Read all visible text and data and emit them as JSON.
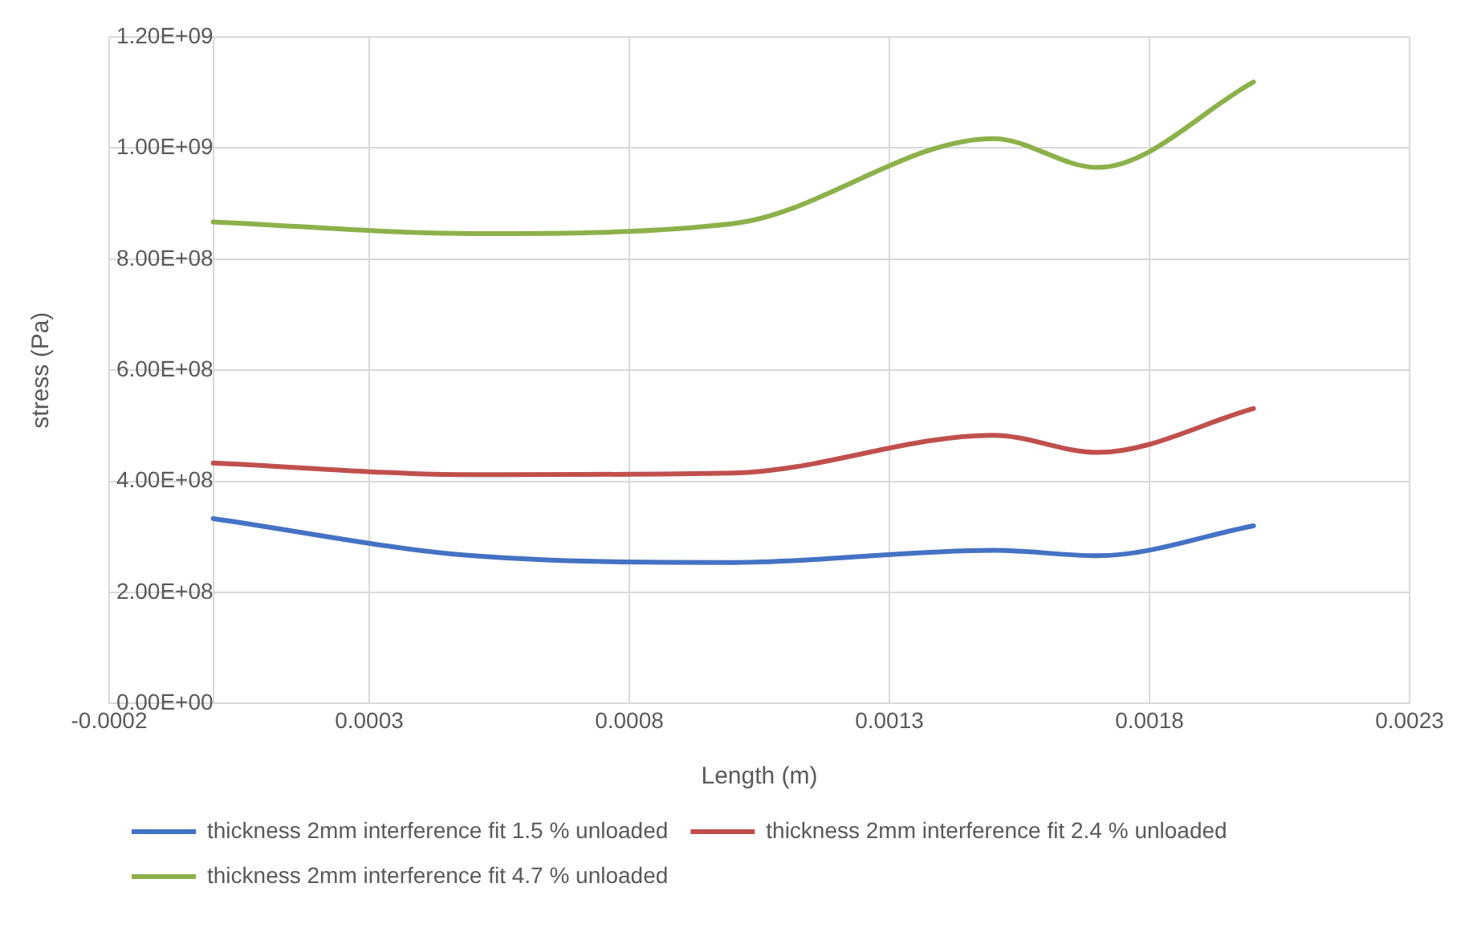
{
  "chart_data": {
    "type": "line",
    "xlabel": "Length (m)",
    "ylabel": "stress (Pa)",
    "xlim": [
      -0.0002,
      0.0023
    ],
    "xticks": [
      -0.0002,
      0.0003,
      0.0008,
      0.0013,
      0.0018,
      0.0023
    ],
    "ylim": [
      0,
      1200000000
    ],
    "yticks": [
      {
        "value": 0,
        "label": "0.00E+00"
      },
      {
        "value": 200000000,
        "label": "2.00E+08"
      },
      {
        "value": 400000000,
        "label": "4.00E+08"
      },
      {
        "value": 600000000,
        "label": "6.00E+08"
      },
      {
        "value": 800000000,
        "label": "8.00E+08"
      },
      {
        "value": 1000000000,
        "label": "1.00E+09"
      },
      {
        "value": 1200000000,
        "label": "1.20E+09"
      }
    ],
    "x": [
      0,
      0.0005,
      0.001,
      0.0015,
      0.0017,
      0.002
    ],
    "series": [
      {
        "name": "thickness 2mm interference fit 1.5 % unloaded",
        "color": "#4472c4",
        "values": [
          333000000,
          266000000,
          254000000,
          276000000,
          266000000,
          320000000
        ]
      },
      {
        "name": "thickness 2mm interference fit 2.4 % unloaded",
        "color": "#c0504d",
        "values": [
          433000000,
          412000000,
          415000000,
          483000000,
          452000000,
          531000000
        ]
      },
      {
        "name": "thickness 2mm interference fit 4.7 % unloaded",
        "color": "#8cb14a",
        "values": [
          867000000,
          846000000,
          864000000,
          1017000000,
          965000000,
          1119000000
        ]
      }
    ],
    "grid": true,
    "legend": "bottom",
    "marker": "none",
    "line_style": "solid"
  }
}
